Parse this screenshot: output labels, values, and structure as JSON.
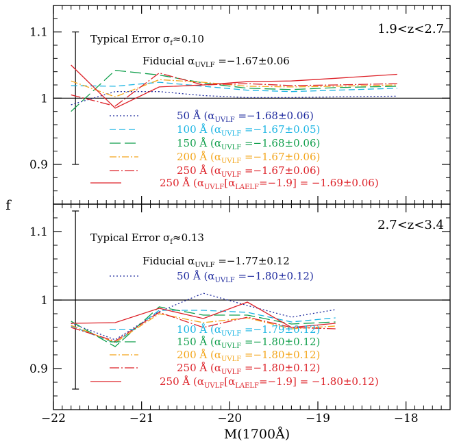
{
  "chart_data": {
    "type": "line",
    "xlabel": "M(1700Å)",
    "ylabel": "f",
    "xlim": [
      -22,
      -17.5
    ],
    "x_ticks": [
      -22,
      -21,
      -20,
      -19,
      -18
    ],
    "x_tick_labels": [
      "−22",
      "−21",
      "−20",
      "−19",
      "−18"
    ],
    "panels": [
      {
        "label": "1.9<z<2.7",
        "ylim": [
          0.84,
          1.14
        ],
        "y_ticks": [
          0.9,
          1.0,
          1.1
        ],
        "y_tick_labels": [
          "0.9",
          "1",
          "1.1"
        ],
        "reference_line": 1.0,
        "typical_error": {
          "text": "Typical Error σ",
          "sub": "f",
          "value": "≈0.10",
          "x": -21.75,
          "y_low": 0.9,
          "y_high": 1.1
        },
        "fiducial": {
          "text": "Fiducial α",
          "sub": "UVLF",
          "value": " =−1.67±0.06"
        },
        "series": [
          {
            "name": "50 Å",
            "color": "#1e2a9e",
            "dash": "2,3",
            "legend": {
              "lead": "50 Å  (α",
              "sub": "UVLF",
              "value": " =−1.68±0.06)"
            },
            "x": [
              -21.8,
              -21.3,
              -20.8,
              -20.3,
              -19.8,
              -19.3,
              -18.8,
              -18.1
            ],
            "y": [
              0.99,
              1.01,
              1.01,
              1.004,
              1.001,
              1.001,
              1.002,
              1.003
            ]
          },
          {
            "name": "100 Å",
            "color": "#19b4e3",
            "dash": "9,5",
            "legend": {
              "lead": "100 Å  (α",
              "sub": "UVLF",
              "value": " =−1.67±0.05)"
            },
            "x": [
              -21.8,
              -21.3,
              -20.8,
              -20.3,
              -19.8,
              -19.3,
              -18.8,
              -18.1
            ],
            "y": [
              1.019,
              1.018,
              1.024,
              1.018,
              1.012,
              1.01,
              1.012,
              1.015
            ]
          },
          {
            "name": "150 Å",
            "color": "#0e9e4a",
            "dash": "16,6",
            "legend": {
              "lead": "150 Å  (α",
              "sub": "UVLF",
              "value": " =−1.68±0.06)"
            },
            "x": [
              -21.8,
              -21.3,
              -20.8,
              -20.3,
              -19.8,
              -19.3,
              -18.8,
              -18.1
            ],
            "y": [
              0.98,
              1.042,
              1.035,
              1.023,
              1.015,
              1.013,
              1.016,
              1.018
            ]
          },
          {
            "name": "200 Å",
            "color": "#f3a51a",
            "dash": "10,3,2,3",
            "legend": {
              "lead": "200 Å  (α",
              "sub": "UVLF",
              "value": " =−1.67±0.06)"
            },
            "x": [
              -21.8,
              -21.3,
              -20.8,
              -20.3,
              -19.8,
              -19.3,
              -18.8,
              -18.1
            ],
            "y": [
              1.026,
              1.002,
              1.028,
              1.024,
              1.018,
              1.017,
              1.018,
              1.02
            ]
          },
          {
            "name": "250 Å",
            "color": "#dd2027",
            "dash": "14,3,2,3",
            "legend": {
              "lead": "250 Å  (α",
              "sub": "UVLF",
              "value": " =−1.67±0.06)"
            },
            "x": [
              -21.8,
              -21.3,
              -20.8,
              -20.3,
              -19.8,
              -19.3,
              -18.8,
              -18.1
            ],
            "y": [
              1.005,
              0.988,
              1.038,
              1.02,
              1.022,
              1.019,
              1.02,
              1.022
            ]
          },
          {
            "name": "250 Å (LAELF −1.9)",
            "color": "#dd2027",
            "dash": "",
            "legend": {
              "lead": "250 Å  (α",
              "sub": "UVLF",
              "mid": "[α",
              "sub2": "LAELF",
              "value": "=−1.9] = −1.69±0.06)"
            },
            "x": [
              -21.8,
              -21.3,
              -20.8,
              -20.3,
              -19.8,
              -19.3,
              -18.8,
              -18.1
            ],
            "y": [
              1.05,
              0.985,
              1.017,
              1.02,
              1.025,
              1.026,
              1.03,
              1.036
            ]
          }
        ]
      },
      {
        "label": "2.7<z<3.4",
        "ylim": [
          0.84,
          1.14
        ],
        "y_ticks": [
          0.9,
          1.0,
          1.1
        ],
        "y_tick_labels": [
          "0.9",
          "1",
          "1.1"
        ],
        "reference_line": 1.0,
        "typical_error": {
          "text": "Typical Error σ",
          "sub": "f",
          "value": "≈0.13",
          "x": -21.75,
          "y_low": 0.87,
          "y_high": 1.13
        },
        "fiducial": {
          "text": "Fiducial α",
          "sub": "UVLF",
          "value": " =−1.77±0.12"
        },
        "series": [
          {
            "name": "50 Å",
            "color": "#1e2a9e",
            "dash": "2,3",
            "legend": {
              "lead": "50 Å  (α",
              "sub": "UVLF",
              "value": " =−1.80±0.12)"
            },
            "x": [
              -21.8,
              -21.3,
              -20.8,
              -20.3,
              -19.8,
              -19.3,
              -18.8
            ],
            "y": [
              0.966,
              0.942,
              0.983,
              1.01,
              0.992,
              0.975,
              0.986
            ]
          },
          {
            "name": "100 Å",
            "color": "#19b4e3",
            "dash": "9,5",
            "legend": {
              "lead": "100 Å  (α",
              "sub": "UVLF",
              "value": " =−1.79±0.12)"
            },
            "x": [
              -21.8,
              -21.3,
              -20.8,
              -20.3,
              -19.8,
              -19.3,
              -18.8
            ],
            "y": [
              0.962,
              0.937,
              0.985,
              0.985,
              0.982,
              0.968,
              0.974
            ]
          },
          {
            "name": "150 Å",
            "color": "#0e9e4a",
            "dash": "16,6",
            "legend": {
              "lead": "150 Å  (α",
              "sub": "UVLF",
              "value": " =−1.80±0.12)"
            },
            "x": [
              -21.8,
              -21.3,
              -20.8,
              -20.3,
              -19.8,
              -19.3,
              -18.8
            ],
            "y": [
              0.969,
              0.932,
              0.99,
              0.978,
              0.978,
              0.965,
              0.968
            ]
          },
          {
            "name": "200 Å",
            "color": "#f3a51a",
            "dash": "10,3,2,3",
            "legend": {
              "lead": "200 Å  (α",
              "sub": "UVLF",
              "value": " =−1.80±0.12)"
            },
            "x": [
              -21.8,
              -21.3,
              -20.8,
              -20.3,
              -19.8,
              -19.3,
              -18.8
            ],
            "y": [
              0.963,
              0.938,
              0.98,
              0.967,
              0.974,
              0.958,
              0.962
            ]
          },
          {
            "name": "250 Å",
            "color": "#dd2027",
            "dash": "14,3,2,3",
            "legend": {
              "lead": "250 Å  (α",
              "sub": "UVLF",
              "value": " =−1.80±0.12)"
            },
            "x": [
              -21.8,
              -21.3,
              -20.8,
              -20.3,
              -19.8,
              -19.3,
              -18.8
            ],
            "y": [
              0.96,
              0.94,
              0.982,
              0.96,
              0.975,
              0.96,
              0.958
            ]
          },
          {
            "name": "250 Å (LAELF −1.9)",
            "color": "#dd2027",
            "dash": "",
            "legend": {
              "lead": "250 Å  (α",
              "sub": "UVLF",
              "mid": "[α",
              "sub2": "LAELF",
              "value": "=−1.9] = −1.80±0.12)"
            },
            "x": [
              -21.8,
              -21.3,
              -20.8,
              -20.3,
              -19.8,
              -19.3,
              -18.8
            ],
            "y": [
              0.966,
              0.967,
              0.988,
              0.973,
              0.997,
              0.96,
              0.966
            ]
          }
        ]
      }
    ]
  }
}
